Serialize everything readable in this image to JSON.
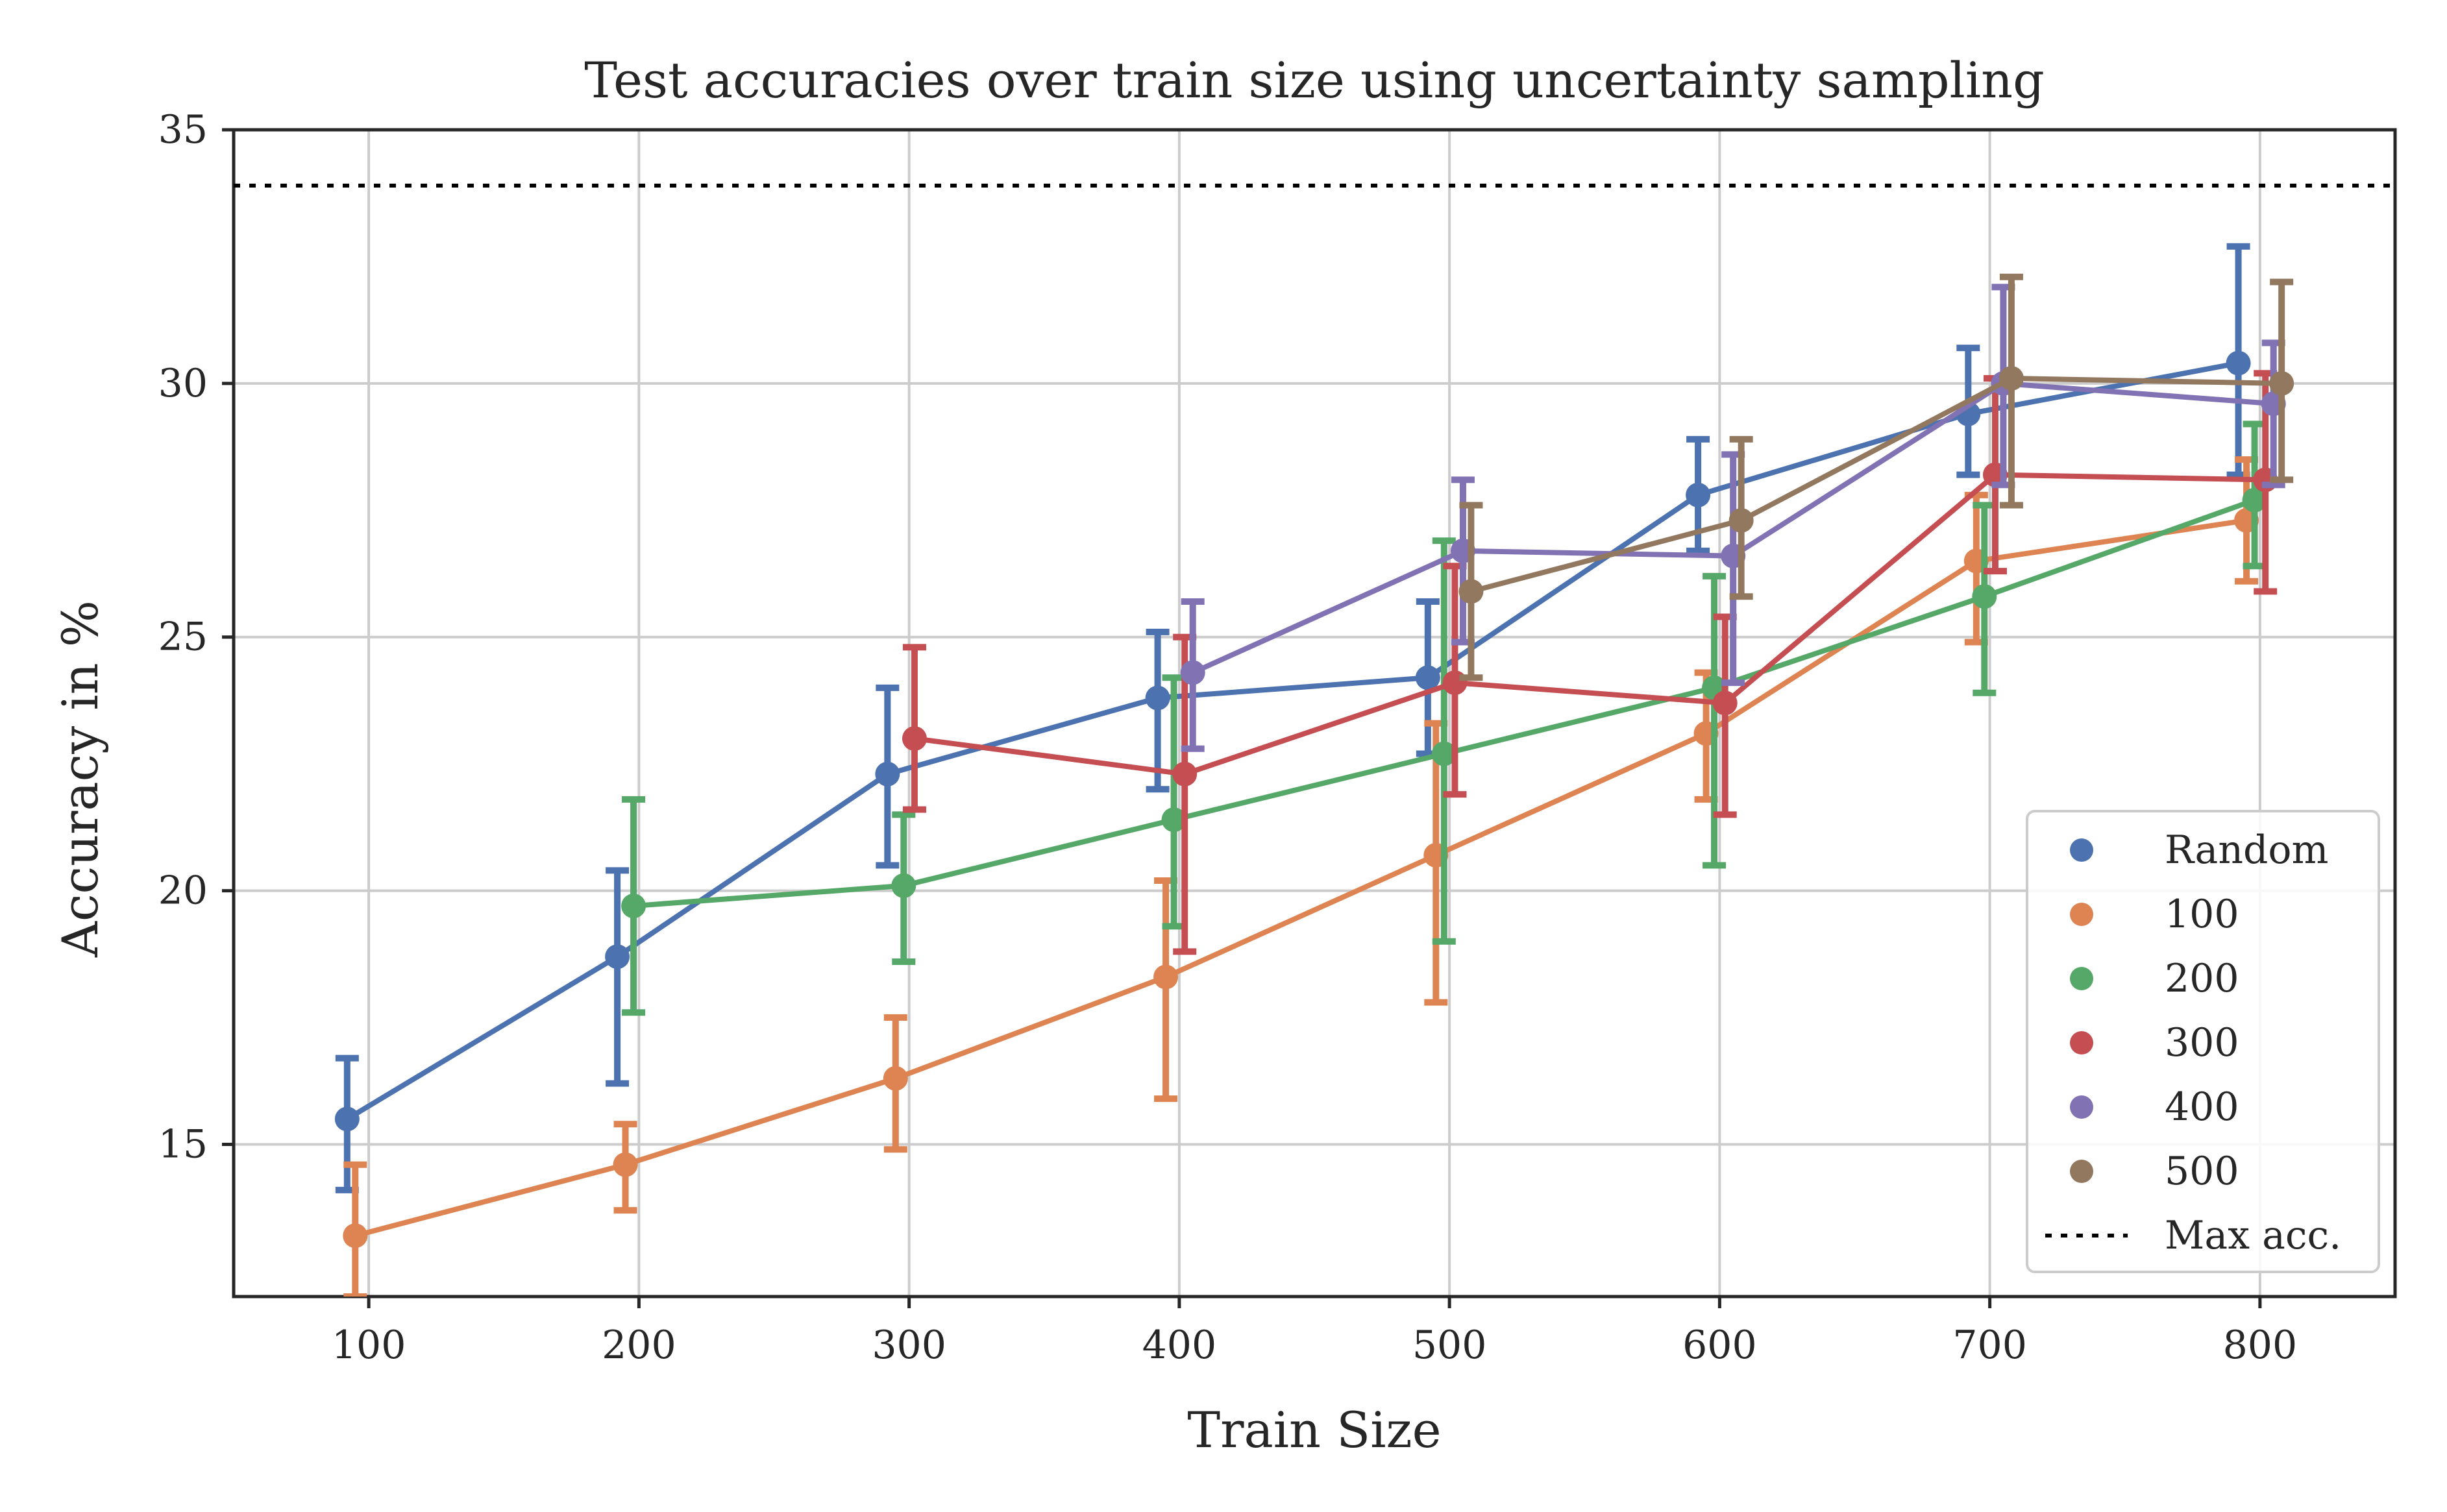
{
  "chart_data": {
    "type": "line",
    "title": "Test accuracies over train size using uncertainty sampling",
    "xlabel": "Train Size",
    "ylabel": "Accuracy in %",
    "xlim": [
      50,
      850
    ],
    "ylim": [
      12,
      35
    ],
    "x_ticks": [
      100,
      200,
      300,
      400,
      500,
      600,
      700,
      800
    ],
    "y_ticks": [
      15,
      20,
      25,
      30,
      35
    ],
    "grid": true,
    "legend_position": "lower right",
    "reference_line": {
      "name": "Max acc.",
      "y": 33.9,
      "color": "#000000",
      "style": "dotted"
    },
    "series": [
      {
        "name": "Random",
        "color": "#4c72b0",
        "x": [
          92,
          192,
          292,
          392,
          492,
          592,
          692,
          792
        ],
        "y": [
          15.5,
          18.7,
          22.3,
          23.8,
          24.2,
          27.8,
          29.4,
          30.4
        ],
        "err_low": [
          14.1,
          16.2,
          20.5,
          22.0,
          22.7,
          26.7,
          28.2,
          28.2
        ],
        "err_high": [
          16.7,
          20.4,
          24.0,
          25.1,
          25.7,
          28.9,
          30.7,
          32.7
        ]
      },
      {
        "name": "100",
        "color": "#dd8452",
        "x": [
          95,
          195,
          295,
          395,
          495,
          595,
          695,
          795
        ],
        "y": [
          13.2,
          14.6,
          16.3,
          18.3,
          20.7,
          23.1,
          26.5,
          27.3
        ],
        "err_low": [
          12.0,
          13.7,
          14.9,
          15.9,
          17.8,
          21.8,
          24.9,
          26.1
        ],
        "err_high": [
          14.6,
          15.4,
          17.5,
          20.2,
          23.3,
          24.3,
          27.8,
          28.5
        ]
      },
      {
        "name": "200",
        "color": "#55a868",
        "x": [
          198,
          298,
          398,
          498,
          598,
          698,
          798
        ],
        "y": [
          19.7,
          20.1,
          21.4,
          22.7,
          24.0,
          25.8,
          27.7
        ],
        "err_low": [
          17.6,
          18.6,
          19.3,
          19.0,
          20.5,
          23.9,
          26.4
        ],
        "err_high": [
          21.8,
          21.5,
          24.2,
          26.9,
          26.2,
          27.6,
          29.2
        ]
      },
      {
        "name": "300",
        "color": "#c44e52",
        "x": [
          302,
          402,
          502,
          602,
          702,
          802
        ],
        "y": [
          23.0,
          22.3,
          24.1,
          23.7,
          28.2,
          28.1
        ],
        "err_low": [
          21.6,
          18.8,
          21.9,
          21.5,
          26.3,
          25.9
        ],
        "err_high": [
          24.8,
          25.0,
          26.4,
          25.4,
          30.1,
          30.2
        ]
      },
      {
        "name": "400",
        "color": "#8172b3",
        "x": [
          405,
          505,
          605,
          705,
          805
        ],
        "y": [
          24.3,
          26.7,
          26.6,
          30.0,
          29.6
        ],
        "err_low": [
          22.8,
          24.9,
          24.1,
          28.0,
          28.0
        ],
        "err_high": [
          25.7,
          28.1,
          28.6,
          31.9,
          30.8
        ]
      },
      {
        "name": "500",
        "color": "#937860",
        "x": [
          508,
          608,
          708,
          808
        ],
        "y": [
          25.9,
          27.3,
          30.1,
          30.0
        ],
        "err_low": [
          24.2,
          25.8,
          27.6,
          28.1
        ],
        "err_high": [
          27.6,
          28.9,
          32.1,
          32.0
        ]
      }
    ]
  }
}
